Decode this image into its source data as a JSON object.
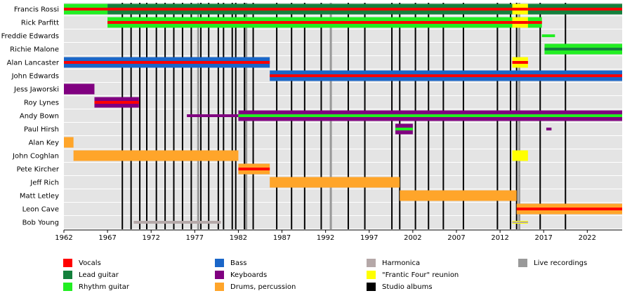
{
  "chart_data": {
    "type": "timeline",
    "xlim": [
      1962,
      2026
    ],
    "xticks": [
      1962,
      1967,
      1972,
      1977,
      1982,
      1987,
      1992,
      1997,
      2002,
      2007,
      2012,
      2017,
      2022
    ],
    "roles": [
      {
        "name": "Vocals",
        "color": "#ff0000"
      },
      {
        "name": "Lead guitar",
        "color": "#14803c"
      },
      {
        "name": "Rhythm guitar",
        "color": "#22ee22"
      },
      {
        "name": "Bass",
        "color": "#1a66c8"
      },
      {
        "name": "Keyboards",
        "color": "#800080"
      },
      {
        "name": "Drums, percussion",
        "color": "#ffa52a"
      },
      {
        "name": "Harmonica",
        "color": "#b5a8a8"
      },
      {
        "name": "\"Frantic Four\" reunion",
        "color": "#ffff00"
      },
      {
        "name": "Studio albums",
        "color": "#000000"
      },
      {
        "name": "Live recordings",
        "color": "#999999"
      }
    ],
    "studio_albums": [
      1968.7,
      1969.7,
      1970.7,
      1971.5,
      1972.6,
      1973.6,
      1974.6,
      1975.6,
      1976.6,
      1977.7,
      1978.6,
      1979.7,
      1980.3,
      1981.3,
      1981.7,
      1982.7,
      1983.7,
      1986.4,
      1988.1,
      1989.6,
      1991.5,
      1994.6,
      1996.5,
      1999.6,
      2000.5,
      2002.3,
      2003.8,
      2005.5,
      2007.8,
      2011.7,
      2013.2,
      2013.9,
      2016.6,
      2019.5
    ],
    "live_recordings": [
      1977.4,
      1982.9,
      1992.6,
      2014.2
    ],
    "members": [
      {
        "name": "Francis Rossi",
        "spans": [
          {
            "start": 1962,
            "end": 1967,
            "roles": [
              "Rhythm guitar",
              "Vocals"
            ]
          },
          {
            "start": 1967,
            "end": 2026,
            "roles": [
              "Lead guitar",
              "Vocals"
            ]
          },
          {
            "start": 2013.4,
            "end": 2015.2,
            "roles": [
              "\"Frantic Four\" reunion",
              "Vocals"
            ]
          }
        ]
      },
      {
        "name": "Rick Parfitt",
        "spans": [
          {
            "start": 1967,
            "end": 2016.8,
            "roles": [
              "Rhythm guitar",
              "Vocals"
            ]
          },
          {
            "start": 2013.4,
            "end": 2015.2,
            "roles": [
              "\"Frantic Four\" reunion",
              "Vocals"
            ]
          }
        ]
      },
      {
        "name": "Freddie Edwards",
        "spans": [
          {
            "start": 2016.8,
            "end": 2018.3,
            "roles": [
              "Rhythm guitar"
            ],
            "thin": true
          }
        ]
      },
      {
        "name": "Richie Malone",
        "spans": [
          {
            "start": 2017.1,
            "end": 2026,
            "roles": [
              "Rhythm guitar",
              "Lead guitar"
            ]
          }
        ]
      },
      {
        "name": "Alan Lancaster",
        "spans": [
          {
            "start": 1962,
            "end": 1985.6,
            "roles": [
              "Bass",
              "Vocals"
            ]
          },
          {
            "start": 2013.4,
            "end": 2015.2,
            "roles": [
              "\"Frantic Four\" reunion",
              "Vocals"
            ]
          }
        ]
      },
      {
        "name": "John Edwards",
        "spans": [
          {
            "start": 1985.6,
            "end": 2026,
            "roles": [
              "Bass",
              "Vocals"
            ]
          }
        ]
      },
      {
        "name": "Jess Jaworski",
        "spans": [
          {
            "start": 1962,
            "end": 1965.5,
            "roles": [
              "Keyboards"
            ]
          }
        ]
      },
      {
        "name": "Roy Lynes",
        "spans": [
          {
            "start": 1965.5,
            "end": 1970.6,
            "roles": [
              "Keyboards",
              "Vocals"
            ]
          }
        ]
      },
      {
        "name": "Andy Bown",
        "spans": [
          {
            "start": 1976.1,
            "end": 1982,
            "roles": [
              "Keyboards"
            ],
            "thin": true
          },
          {
            "start": 1982,
            "end": 2026,
            "roles": [
              "Keyboards",
              "Rhythm guitar"
            ]
          }
        ]
      },
      {
        "name": "Paul Hirsh",
        "spans": [
          {
            "start": 2000,
            "end": 2002,
            "roles": [
              "Keyboards",
              "Rhythm guitar"
            ]
          },
          {
            "start": 2017.3,
            "end": 2017.9,
            "roles": [
              "Keyboards"
            ],
            "thin": true
          }
        ]
      },
      {
        "name": "Alan Key",
        "spans": [
          {
            "start": 1962,
            "end": 1963.1,
            "roles": [
              "Drums, percussion"
            ]
          }
        ]
      },
      {
        "name": "John Coghlan",
        "spans": [
          {
            "start": 1963.1,
            "end": 1982,
            "roles": [
              "Drums, percussion"
            ]
          },
          {
            "start": 2013.4,
            "end": 2015.2,
            "roles": [
              "\"Frantic Four\" reunion"
            ]
          }
        ]
      },
      {
        "name": "Pete Kircher",
        "spans": [
          {
            "start": 1982,
            "end": 1985.6,
            "roles": [
              "Drums, percussion",
              "Vocals"
            ]
          }
        ]
      },
      {
        "name": "Jeff Rich",
        "spans": [
          {
            "start": 1985.6,
            "end": 2000.5,
            "roles": [
              "Drums, percussion"
            ]
          }
        ]
      },
      {
        "name": "Matt Letley",
        "spans": [
          {
            "start": 2000.5,
            "end": 2013.9,
            "roles": [
              "Drums, percussion"
            ]
          }
        ]
      },
      {
        "name": "Leon Cave",
        "spans": [
          {
            "start": 2013.9,
            "end": 2026,
            "roles": [
              "Drums, percussion",
              "Vocals"
            ]
          }
        ]
      },
      {
        "name": "Bob Young",
        "spans": [
          {
            "start": 1970,
            "end": 1980,
            "roles": [
              "Harmonica"
            ],
            "thin": true
          },
          {
            "start": 2013.4,
            "end": 2015.2,
            "roles": [
              "\"Frantic Four\" reunion",
              "Harmonica"
            ],
            "thin": true
          }
        ]
      }
    ]
  }
}
